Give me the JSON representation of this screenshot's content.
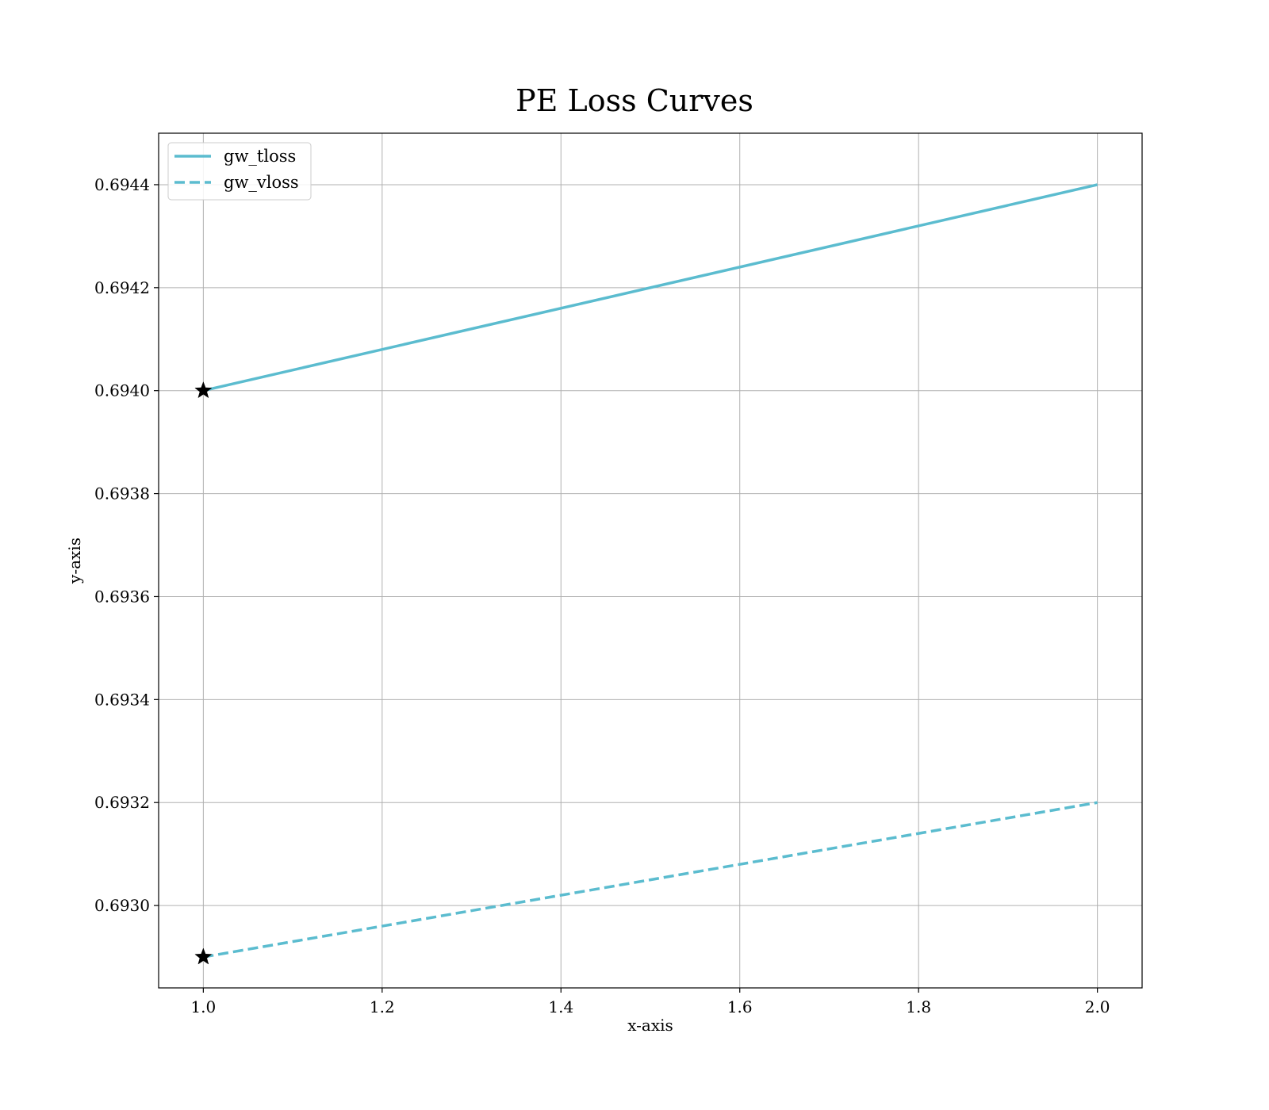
{
  "chart_data": {
    "type": "line",
    "title": "PE Loss Curves",
    "xlabel": "x-axis",
    "ylabel": "y-axis",
    "xlim": [
      0.95,
      2.05
    ],
    "ylim": [
      0.69284,
      0.6945
    ],
    "xticks": [
      1.0,
      1.2,
      1.4,
      1.6,
      1.8,
      2.0
    ],
    "xtick_labels": [
      "1.0",
      "1.2",
      "1.4",
      "1.6",
      "1.8",
      "2.0"
    ],
    "yticks": [
      0.693,
      0.6932,
      0.6934,
      0.6936,
      0.6938,
      0.694,
      0.6942,
      0.6944
    ],
    "ytick_labels": [
      "0.6930",
      "0.6932",
      "0.6934",
      "0.6936",
      "0.6938",
      "0.6940",
      "0.6942",
      "0.6944"
    ],
    "grid": true,
    "legend_position": "top-left",
    "series": [
      {
        "name": "gw_tloss",
        "style": "solid",
        "color": "#5bbccf",
        "x": [
          1.0,
          2.0
        ],
        "y": [
          0.694,
          0.6944
        ],
        "best_marker": {
          "x": 1.0,
          "y": 0.694,
          "symbol": "star"
        }
      },
      {
        "name": "gw_vloss",
        "style": "dashed",
        "color": "#5bbccf",
        "x": [
          1.0,
          2.0
        ],
        "y": [
          0.6929,
          0.6932
        ],
        "best_marker": {
          "x": 1.0,
          "y": 0.6929,
          "symbol": "star"
        }
      }
    ]
  }
}
